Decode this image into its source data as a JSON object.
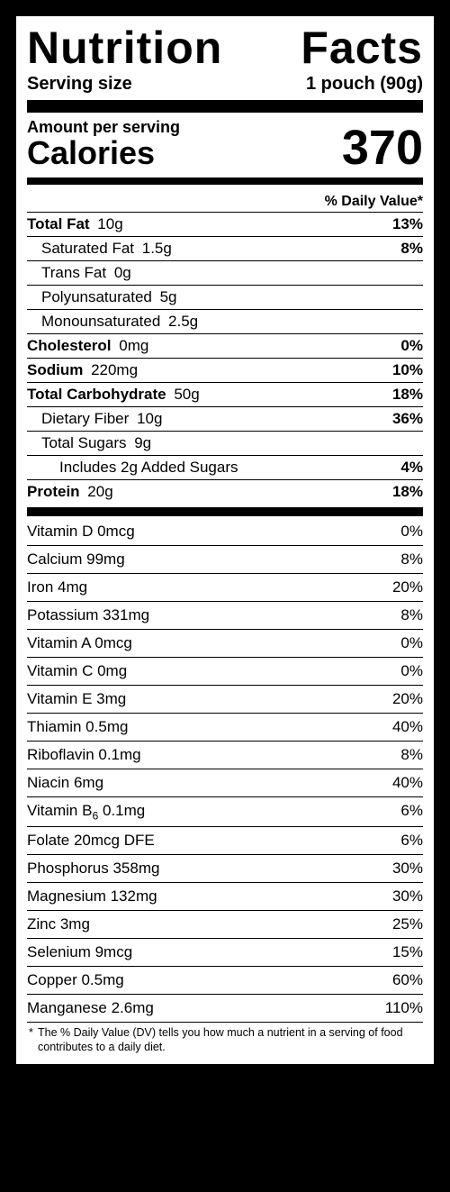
{
  "title_left": "Nutrition",
  "title_right": "Facts",
  "serving_label": "Serving size",
  "serving_value": "1 pouch (90g)",
  "amount_label": "Amount per serving",
  "calories_label": "Calories",
  "calories_value": "370",
  "dv_header": "% Daily Value*",
  "macros": [
    {
      "name": "Total Fat",
      "amt": "10g",
      "dv": "13%",
      "bold": true,
      "indent": 0
    },
    {
      "name": "Saturated Fat",
      "amt": "1.5g",
      "dv": "8%",
      "bold": false,
      "indent": 1
    },
    {
      "name": "Trans Fat",
      "amt": "0g",
      "dv": "",
      "bold": false,
      "indent": 1
    },
    {
      "name": "Polyunsaturated",
      "amt": "5g",
      "dv": "",
      "bold": false,
      "indent": 1
    },
    {
      "name": "Monounsaturated",
      "amt": "2.5g",
      "dv": "",
      "bold": false,
      "indent": 1
    },
    {
      "name": "Cholesterol",
      "amt": "0mg",
      "dv": "0%",
      "bold": true,
      "indent": 0
    },
    {
      "name": "Sodium",
      "amt": "220mg",
      "dv": "10%",
      "bold": true,
      "indent": 0
    },
    {
      "name": "Total Carbohydrate",
      "amt": "50g",
      "dv": "18%",
      "bold": true,
      "indent": 0
    },
    {
      "name": "Dietary Fiber",
      "amt": "10g",
      "dv": "36%",
      "bold": false,
      "indent": 1
    },
    {
      "name": "Total Sugars",
      "amt": "9g",
      "dv": "",
      "bold": false,
      "indent": 1
    },
    {
      "name": "Includes 2g Added Sugars",
      "amt": "",
      "dv": "4%",
      "bold": false,
      "indent": 2
    },
    {
      "name": "Protein",
      "amt": "20g",
      "dv": "18%",
      "bold": true,
      "indent": 0
    }
  ],
  "vitamins": [
    {
      "name": "Vitamin D",
      "amt": "0mcg",
      "dv": "0%"
    },
    {
      "name": "Calcium",
      "amt": "99mg",
      "dv": "8%"
    },
    {
      "name": "Iron",
      "amt": "4mg",
      "dv": "20%"
    },
    {
      "name": "Potassium",
      "amt": "331mg",
      "dv": "8%"
    },
    {
      "name": "Vitamin A",
      "amt": "0mcg",
      "dv": "0%"
    },
    {
      "name": "Vitamin C",
      "amt": "0mg",
      "dv": "0%"
    },
    {
      "name": "Vitamin E",
      "amt": "3mg",
      "dv": "20%"
    },
    {
      "name": "Thiamin",
      "amt": "0.5mg",
      "dv": "40%"
    },
    {
      "name": "Riboflavin",
      "amt": "0.1mg",
      "dv": "8%"
    },
    {
      "name": "Niacin",
      "amt": "6mg",
      "dv": "40%"
    },
    {
      "name": "Vitamin B",
      "sub": "6",
      "amt": "0.1mg",
      "dv": "6%"
    },
    {
      "name": "Folate",
      "amt": "20mcg DFE",
      "dv": "6%"
    },
    {
      "name": "Phosphorus",
      "amt": "358mg",
      "dv": "30%"
    },
    {
      "name": "Magnesium",
      "amt": "132mg",
      "dv": "30%"
    },
    {
      "name": "Zinc",
      "amt": "3mg",
      "dv": "25%"
    },
    {
      "name": "Selenium",
      "amt": "9mcg",
      "dv": "15%"
    },
    {
      "name": "Copper",
      "amt": "0.5mg",
      "dv": "60%"
    },
    {
      "name": "Manganese",
      "amt": "2.6mg",
      "dv": "110%"
    }
  ],
  "footnote_star": "*",
  "footnote": "The % Daily Value (DV) tells you how much a nutrient in a serving of food contributes to a daily diet."
}
